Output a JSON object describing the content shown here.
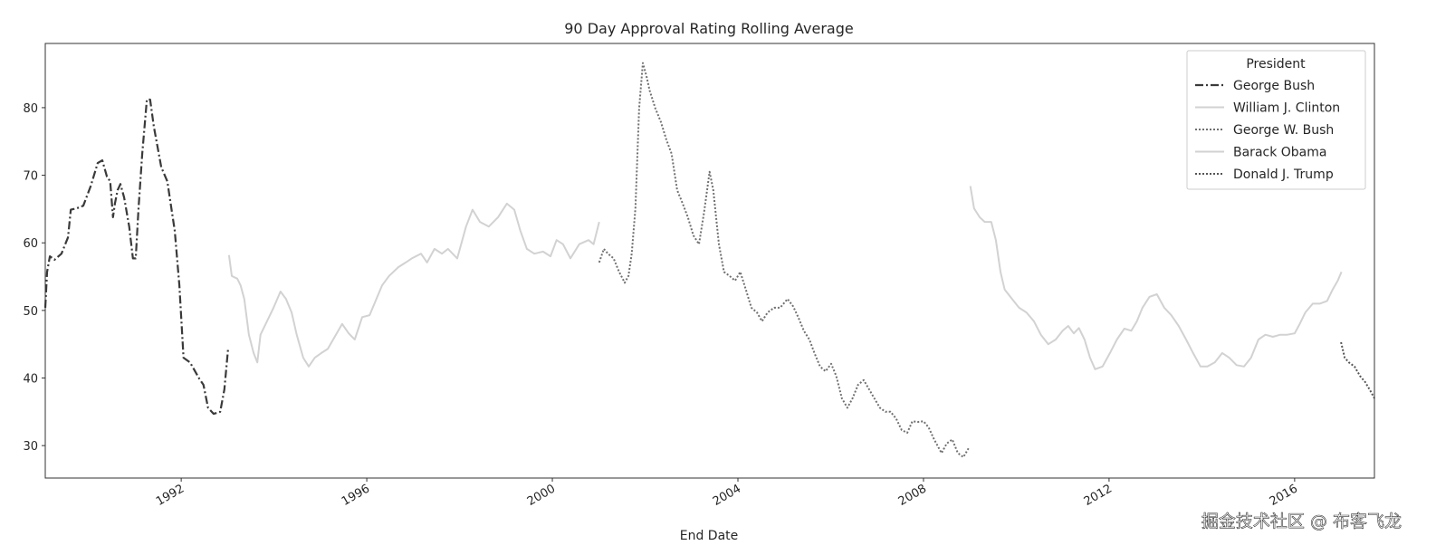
{
  "chart_data": {
    "type": "line",
    "title": "90 Day Approval Rating Rolling Average",
    "xlabel": "End Date",
    "ylabel": "",
    "xlim": [
      1989.07,
      2017.72
    ],
    "ylim": [
      25.2,
      89.5
    ],
    "x_ticks": [
      1992,
      1996,
      2000,
      2004,
      2008,
      2012,
      2016
    ],
    "x_tick_labels": [
      "1992",
      "1996",
      "2000",
      "2004",
      "2008",
      "2012",
      "2016"
    ],
    "y_ticks": [
      30,
      40,
      50,
      60,
      70,
      80
    ],
    "y_tick_labels": [
      "30",
      "40",
      "50",
      "60",
      "70",
      "80"
    ],
    "grid": false,
    "legend": {
      "title": "President",
      "placement": "top-right"
    },
    "series": [
      {
        "name": "George Bush",
        "color": "#3a3a3a",
        "style": "dashdot",
        "x": [
          1989.07,
          1989.11,
          1989.17,
          1989.27,
          1989.42,
          1989.56,
          1989.62,
          1989.75,
          1989.89,
          1990.05,
          1990.2,
          1990.3,
          1990.4,
          1990.47,
          1990.53,
          1990.57,
          1990.63,
          1990.69,
          1990.77,
          1990.88,
          1990.96,
          1991.02,
          1991.08,
          1991.16,
          1991.26,
          1991.33,
          1991.41,
          1991.57,
          1991.7,
          1991.86,
          1991.96,
          1992.05,
          1992.19,
          1992.39,
          1992.48,
          1992.58,
          1992.7,
          1992.84,
          1992.93,
          1993.01
        ],
        "y": [
          50.4,
          55.7,
          58.0,
          57.5,
          58.4,
          60.8,
          64.9,
          65.1,
          65.5,
          68.4,
          71.8,
          72.2,
          69.8,
          69.1,
          63.8,
          65.8,
          67.8,
          68.7,
          66.7,
          62.4,
          57.7,
          57.7,
          65.1,
          73.2,
          81.2,
          81.2,
          77.2,
          71.2,
          69.1,
          61.8,
          53.7,
          43.0,
          42.3,
          39.9,
          39.0,
          35.6,
          34.7,
          35.0,
          38.3,
          44.3
        ]
      },
      {
        "name": "William J. Clinton",
        "color": "#d2d2d2",
        "style": "solid",
        "x": [
          1993.03,
          1993.09,
          1993.21,
          1993.28,
          1993.36,
          1993.46,
          1993.56,
          1993.64,
          1993.71,
          1993.85,
          1993.99,
          1994.14,
          1994.26,
          1994.38,
          1994.49,
          1994.63,
          1994.75,
          1994.88,
          1995.02,
          1995.16,
          1995.31,
          1995.47,
          1995.61,
          1995.74,
          1995.9,
          1996.06,
          1996.19,
          1996.33,
          1996.48,
          1996.68,
          1996.84,
          1996.97,
          1997.17,
          1997.3,
          1997.46,
          1997.62,
          1997.75,
          1997.95,
          1998.14,
          1998.28,
          1998.44,
          1998.63,
          1998.83,
          1999.02,
          1999.18,
          1999.31,
          1999.45,
          1999.61,
          1999.8,
          1999.96,
          2000.09,
          2000.23,
          2000.39,
          2000.58,
          2000.78,
          2000.89,
          2001.01
        ],
        "y": [
          58.2,
          55.1,
          54.7,
          53.7,
          51.7,
          46.4,
          43.7,
          42.3,
          46.4,
          48.4,
          50.4,
          52.8,
          51.7,
          49.7,
          46.4,
          43.0,
          41.7,
          43.0,
          43.7,
          44.3,
          46.1,
          48.0,
          46.6,
          45.7,
          49.0,
          49.3,
          51.4,
          53.7,
          55.1,
          56.4,
          57.1,
          57.7,
          58.4,
          57.1,
          59.1,
          58.4,
          59.1,
          57.7,
          62.4,
          64.9,
          63.1,
          62.4,
          63.8,
          65.8,
          64.9,
          61.8,
          59.1,
          58.4,
          58.7,
          58.0,
          60.4,
          59.8,
          57.7,
          59.8,
          60.4,
          59.8,
          63.1
        ]
      },
      {
        "name": "George W. Bush",
        "color": "#707070",
        "style": "dotted",
        "x": [
          2001.01,
          2001.11,
          2001.2,
          2001.32,
          2001.44,
          2001.56,
          2001.64,
          2001.71,
          2001.79,
          2001.87,
          2001.95,
          2002.03,
          2002.1,
          2002.22,
          2002.34,
          2002.46,
          2002.57,
          2002.69,
          2002.81,
          2002.92,
          2003.04,
          2003.16,
          2003.27,
          2003.39,
          2003.47,
          2003.59,
          2003.7,
          2003.82,
          2003.94,
          2004.05,
          2004.17,
          2004.29,
          2004.41,
          2004.52,
          2004.64,
          2004.78,
          2004.91,
          2005.07,
          2005.19,
          2005.3,
          2005.42,
          2005.54,
          2005.65,
          2005.77,
          2005.89,
          2006.01,
          2006.12,
          2006.24,
          2006.36,
          2006.47,
          2006.59,
          2006.71,
          2006.83,
          2006.94,
          2007.06,
          2007.18,
          2007.29,
          2007.41,
          2007.53,
          2007.65,
          2007.76,
          2007.88,
          2008.0,
          2008.11,
          2008.23,
          2008.39,
          2008.5,
          2008.62,
          2008.74,
          2008.86,
          2008.97
        ],
        "y": [
          57.1,
          59.1,
          58.4,
          57.7,
          55.7,
          54.1,
          55.1,
          58.4,
          65.1,
          79.9,
          86.6,
          84.6,
          82.5,
          79.9,
          77.9,
          75.2,
          73.2,
          67.8,
          65.8,
          63.8,
          61.1,
          59.8,
          64.5,
          70.5,
          67.8,
          59.8,
          55.7,
          55.1,
          54.4,
          55.7,
          53.1,
          50.4,
          49.7,
          48.4,
          49.7,
          50.4,
          50.4,
          51.7,
          50.6,
          49.0,
          47.0,
          45.7,
          43.7,
          41.7,
          41.0,
          42.1,
          40.3,
          37.0,
          35.6,
          37.0,
          39.0,
          39.7,
          38.3,
          37.0,
          35.6,
          35.0,
          35.0,
          34.0,
          32.3,
          31.9,
          33.6,
          33.5,
          33.6,
          32.7,
          30.9,
          28.9,
          30.3,
          30.9,
          28.9,
          28.3,
          29.6
        ]
      },
      {
        "name": "Barack Obama",
        "color": "#d2d2d2",
        "style": "solid",
        "x": [
          2009.01,
          2009.09,
          2009.21,
          2009.32,
          2009.46,
          2009.56,
          2009.66,
          2009.75,
          2009.91,
          2010.06,
          2010.22,
          2010.38,
          2010.53,
          2010.69,
          2010.85,
          2011.0,
          2011.12,
          2011.24,
          2011.35,
          2011.47,
          2011.59,
          2011.7,
          2011.86,
          2012.02,
          2012.17,
          2012.33,
          2012.48,
          2012.6,
          2012.72,
          2012.87,
          2013.03,
          2013.19,
          2013.34,
          2013.5,
          2013.66,
          2013.81,
          2013.97,
          2014.12,
          2014.28,
          2014.44,
          2014.59,
          2014.75,
          2014.91,
          2015.06,
          2015.22,
          2015.37,
          2015.53,
          2015.69,
          2015.84,
          2016.0,
          2016.11,
          2016.23,
          2016.39,
          2016.54,
          2016.7,
          2016.82,
          2016.93,
          2017.01
        ],
        "y": [
          68.4,
          65.1,
          63.8,
          63.1,
          63.1,
          60.4,
          55.7,
          53.1,
          51.7,
          50.4,
          49.7,
          48.4,
          46.4,
          45.0,
          45.7,
          47.0,
          47.7,
          46.6,
          47.4,
          45.7,
          43.0,
          41.3,
          41.7,
          43.7,
          45.7,
          47.3,
          47.0,
          48.4,
          50.4,
          52.0,
          52.4,
          50.4,
          49.3,
          47.7,
          45.7,
          43.7,
          41.7,
          41.7,
          42.3,
          43.7,
          43.0,
          41.9,
          41.7,
          43.0,
          45.7,
          46.4,
          46.1,
          46.4,
          46.4,
          46.6,
          48.0,
          49.7,
          51.0,
          51.0,
          51.4,
          53.1,
          54.4,
          55.7
        ]
      },
      {
        "name": "Donald J. Trump",
        "color": "#555555",
        "style": "dotted",
        "x": [
          2017.0,
          2017.08,
          2017.17,
          2017.29,
          2017.41,
          2017.52,
          2017.64,
          2017.72
        ],
        "y": [
          45.3,
          43.0,
          42.3,
          41.7,
          40.3,
          39.4,
          38.0,
          37.0
        ]
      }
    ]
  },
  "watermark": "掘金技术社区 @ 布客飞龙"
}
